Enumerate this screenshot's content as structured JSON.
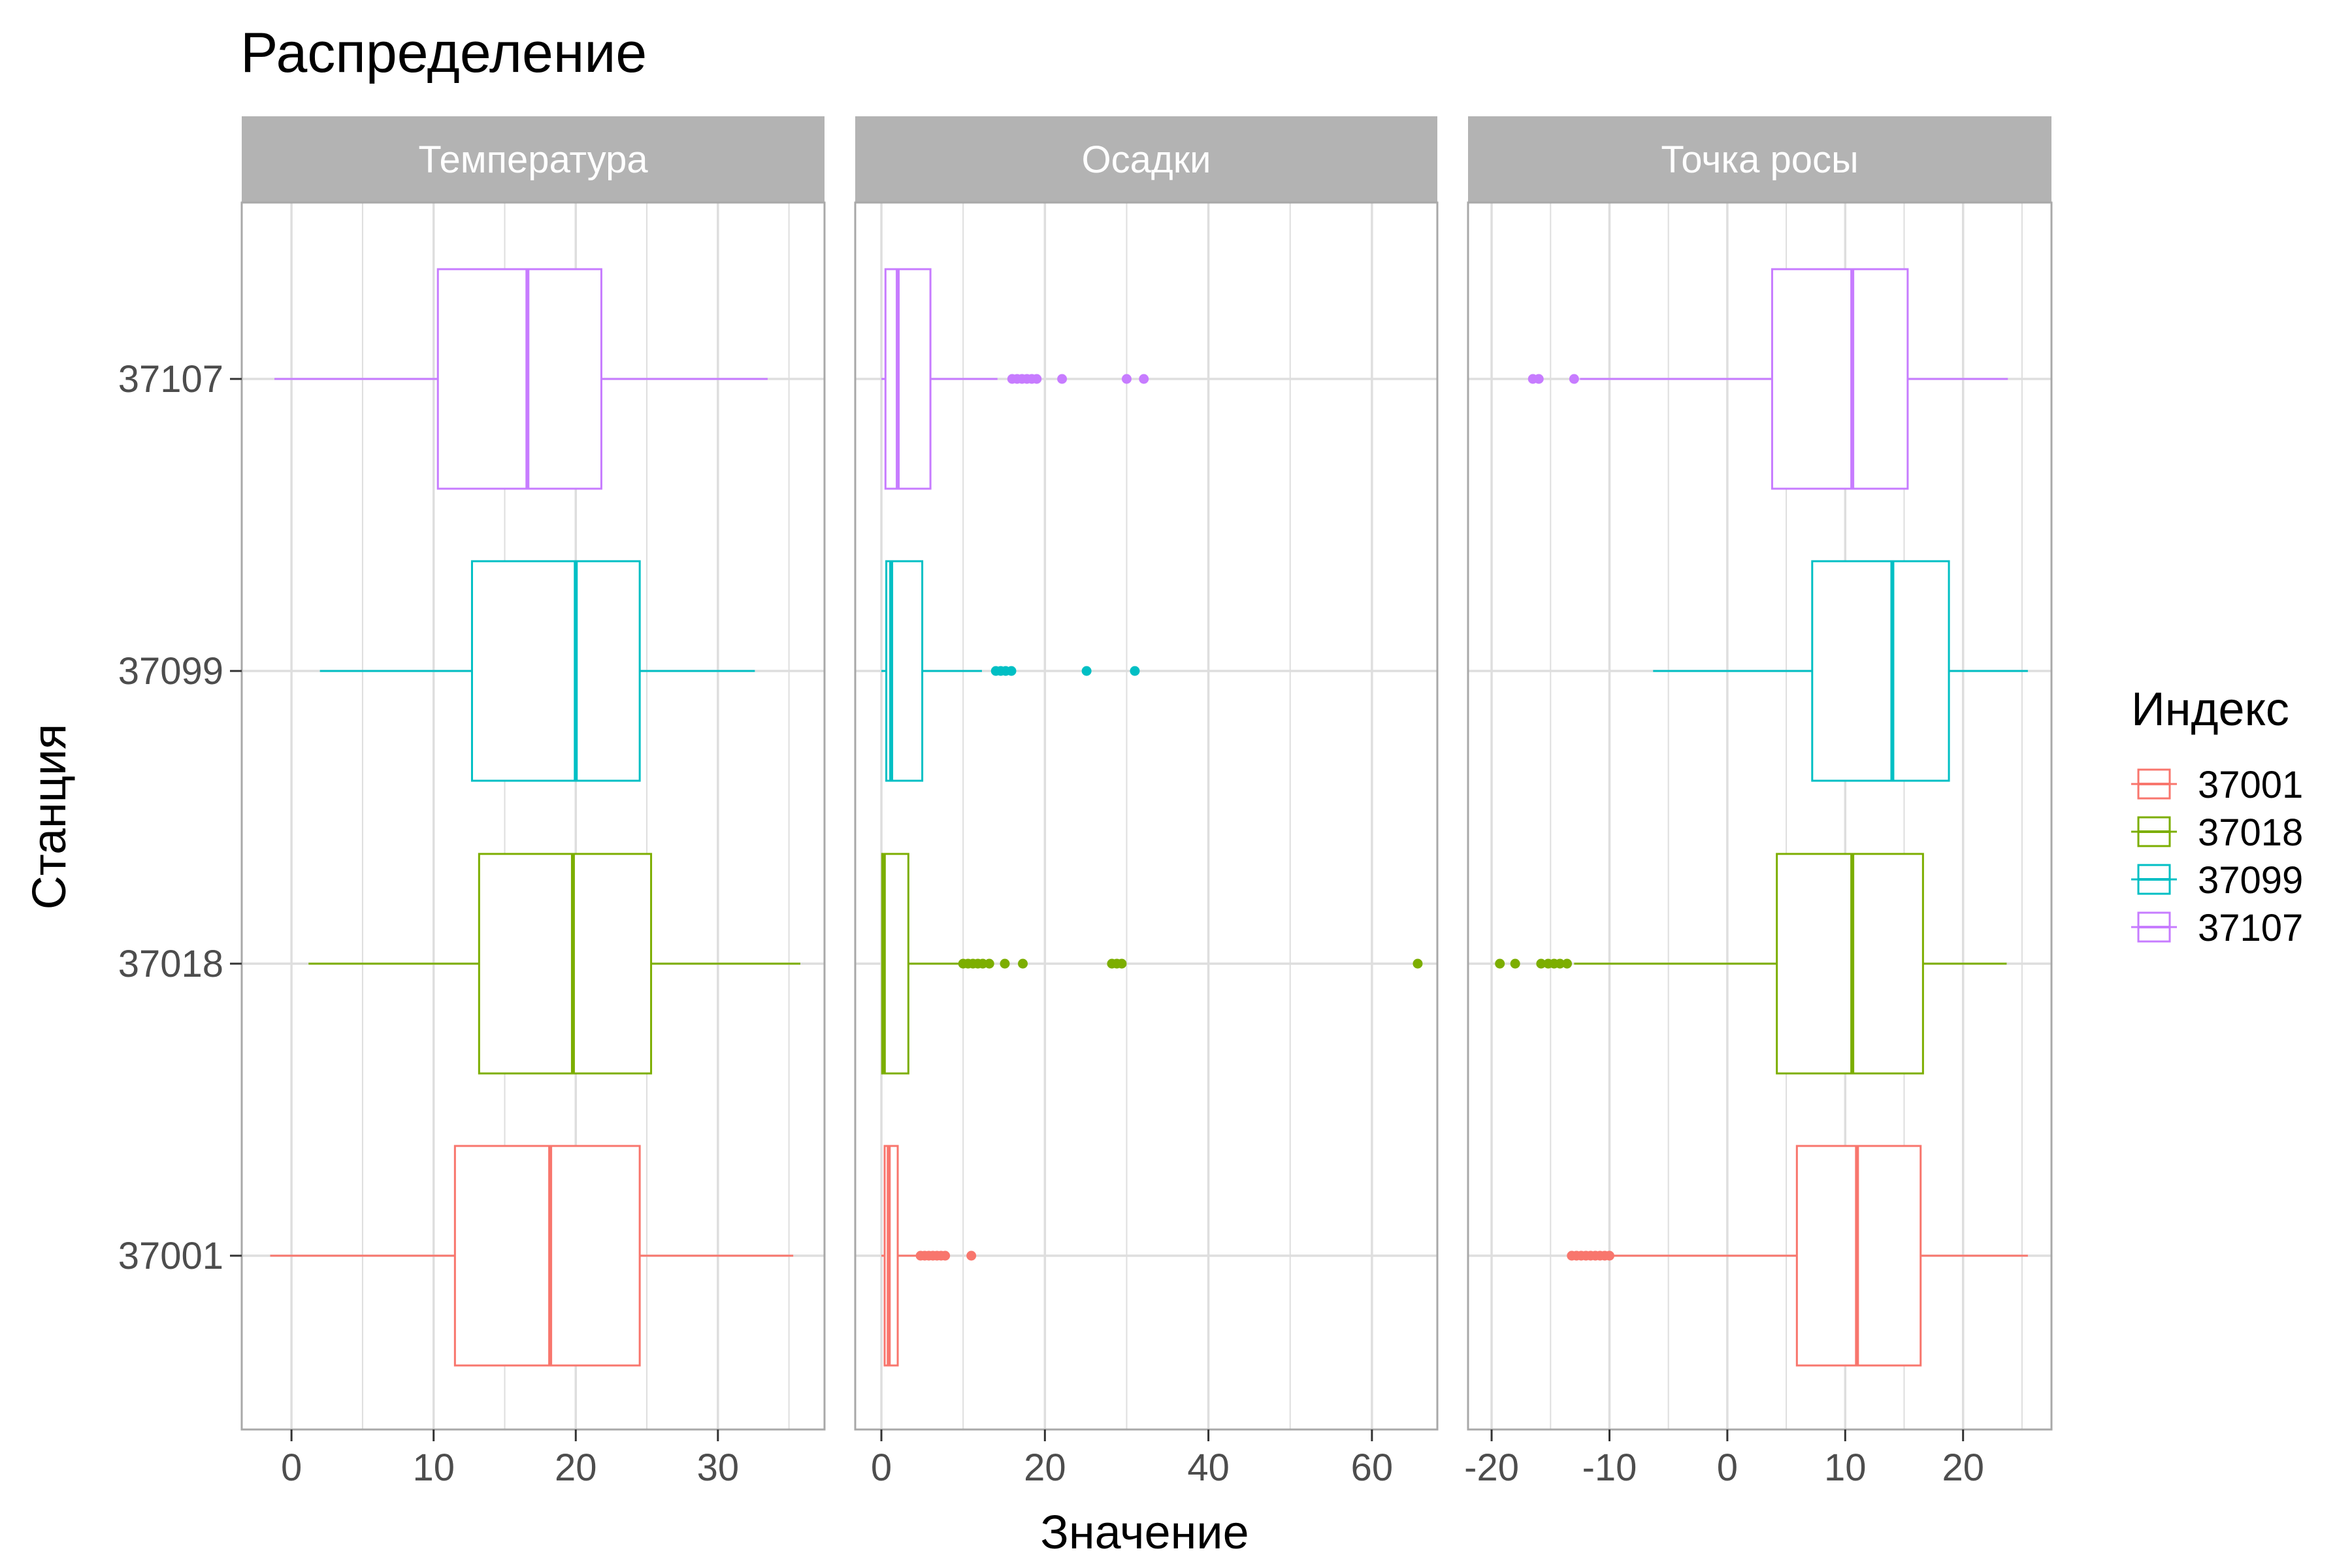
{
  "chart_data": {
    "type": "boxplot",
    "title": "Распределение",
    "xlabel": "Значение",
    "ylabel": "Станция",
    "categories": [
      "37001",
      "37018",
      "37099",
      "37107"
    ],
    "legend": {
      "title": "Индекс",
      "position": "right",
      "entries": [
        "37001",
        "37018",
        "37099",
        "37107"
      ]
    },
    "colors": {
      "37001": "#F8766D",
      "37018": "#7CAE00",
      "37099": "#00BFC4",
      "37107": "#C77CFF",
      "strip_bg": "#b3b3b3",
      "grid": "#dedede",
      "panel_border": "#a8a8a8"
    },
    "grid": true,
    "facets": [
      {
        "label": "Температура",
        "xlim": [
          -3.5,
          37.5
        ],
        "ticks": [
          0,
          10,
          20,
          30
        ],
        "tick_labels": [
          "0",
          "10",
          "20",
          "30"
        ],
        "boxes": [
          {
            "station": "37001",
            "whisker_low": -1.5,
            "q1": 11.5,
            "median": 18.2,
            "q3": 24.5,
            "whisker_high": 35.3,
            "outliers": []
          },
          {
            "station": "37018",
            "whisker_low": 1.2,
            "q1": 13.2,
            "median": 19.8,
            "q3": 25.3,
            "whisker_high": 35.8,
            "outliers": []
          },
          {
            "station": "37099",
            "whisker_low": 2.0,
            "q1": 12.7,
            "median": 20.0,
            "q3": 24.5,
            "whisker_high": 32.6,
            "outliers": []
          },
          {
            "station": "37107",
            "whisker_low": -1.2,
            "q1": 10.3,
            "median": 16.6,
            "q3": 21.8,
            "whisker_high": 33.5,
            "outliers": []
          }
        ]
      },
      {
        "label": "Осадки",
        "xlim": [
          -3.2,
          68
        ],
        "ticks": [
          0,
          20,
          40,
          60
        ],
        "tick_labels": [
          "0",
          "20",
          "40",
          "60"
        ],
        "boxes": [
          {
            "station": "37001",
            "whisker_low": 0,
            "q1": 0.4,
            "median": 0.9,
            "q3": 2.0,
            "whisker_high": 4.5,
            "outliers": [
              4.8,
              5.3,
              5.8,
              6.3,
              6.8,
              7.3,
              7.8,
              11.0
            ]
          },
          {
            "station": "37018",
            "whisker_low": 0,
            "q1": 0.1,
            "median": 0.3,
            "q3": 3.3,
            "whisker_high": 9.6,
            "outliers": [
              10.0,
              10.6,
              11.2,
              11.8,
              12.4,
              13.2,
              15.1,
              17.3,
              28.2,
              28.8,
              29.4,
              65.6
            ]
          },
          {
            "station": "37099",
            "whisker_low": 0,
            "q1": 0.6,
            "median": 1.2,
            "q3": 5.0,
            "whisker_high": 12.3,
            "outliers": [
              14.0,
              14.6,
              15.2,
              15.9,
              25.1,
              31.0
            ]
          },
          {
            "station": "37107",
            "whisker_low": 0,
            "q1": 0.5,
            "median": 2.0,
            "q3": 6.0,
            "whisker_high": 14.2,
            "outliers": [
              16.0,
              16.6,
              17.2,
              17.8,
              18.4,
              19.0,
              22.1,
              30.0,
              32.1
            ]
          }
        ]
      },
      {
        "label": "Точка росы",
        "xlim": [
          -22,
          27.5
        ],
        "ticks": [
          -20,
          -10,
          0,
          10,
          20
        ],
        "tick_labels": [
          "-20",
          "-10",
          "0",
          "10",
          "20"
        ],
        "boxes": [
          {
            "station": "37001",
            "whisker_low": -9.8,
            "q1": 5.9,
            "median": 11.0,
            "q3": 16.4,
            "whisker_high": 25.5,
            "outliers": [
              -13.2,
              -12.8,
              -12.4,
              -12.0,
              -11.6,
              -11.2,
              -10.8,
              -10.4,
              -10.0
            ]
          },
          {
            "station": "37018",
            "whisker_low": -13.0,
            "q1": 4.2,
            "median": 10.6,
            "q3": 16.6,
            "whisker_high": 23.7,
            "outliers": [
              -19.3,
              -18.0,
              -15.8,
              -15.2,
              -14.7,
              -14.2,
              -13.6
            ]
          },
          {
            "station": "37099",
            "whisker_low": -6.3,
            "q1": 7.2,
            "median": 14.0,
            "q3": 18.8,
            "whisker_high": 25.5,
            "outliers": []
          },
          {
            "station": "37107",
            "whisker_low": -12.5,
            "q1": 3.8,
            "median": 10.6,
            "q3": 15.3,
            "whisker_high": 23.8,
            "outliers": [
              -16.5,
              -16.0,
              -13.0
            ]
          }
        ]
      }
    ]
  }
}
